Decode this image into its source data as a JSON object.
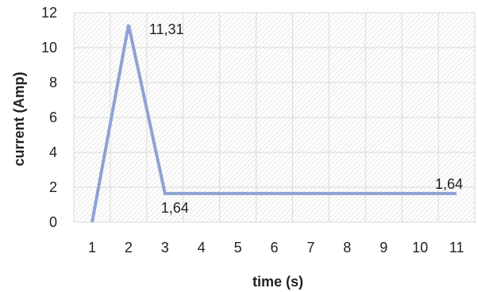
{
  "chart_data": {
    "type": "line",
    "title": "",
    "xlabel": "time (s)",
    "ylabel": "current (Amp)",
    "x": [
      1,
      2,
      3,
      4,
      5,
      6,
      7,
      8,
      9,
      10,
      11
    ],
    "series": [
      {
        "values": [
          0,
          11.31,
          1.64,
          1.64,
          1.64,
          1.64,
          1.64,
          1.64,
          1.64,
          1.64,
          1.64
        ],
        "color": "#8FA2D4"
      }
    ],
    "ylim": [
      0,
      12
    ],
    "yticks": [
      0,
      2,
      4,
      6,
      8,
      10,
      12
    ],
    "xtick_labels": [
      "1",
      "2",
      "3",
      "4",
      "5",
      "6",
      "7",
      "8",
      "9",
      "10",
      "11"
    ],
    "ytick_labels": [
      "0",
      "2",
      "4",
      "6",
      "8",
      "10",
      "12"
    ],
    "data_labels": [
      {
        "index": 1,
        "text": "11,31",
        "position": "right"
      },
      {
        "index": 2,
        "text": "1,64",
        "position": "below"
      },
      {
        "index": 10,
        "text": "1,64",
        "position": "above-left"
      }
    ],
    "grid": true,
    "gridline_color": "#d9d9d9",
    "plot_background": "hatched",
    "legend": "none"
  }
}
